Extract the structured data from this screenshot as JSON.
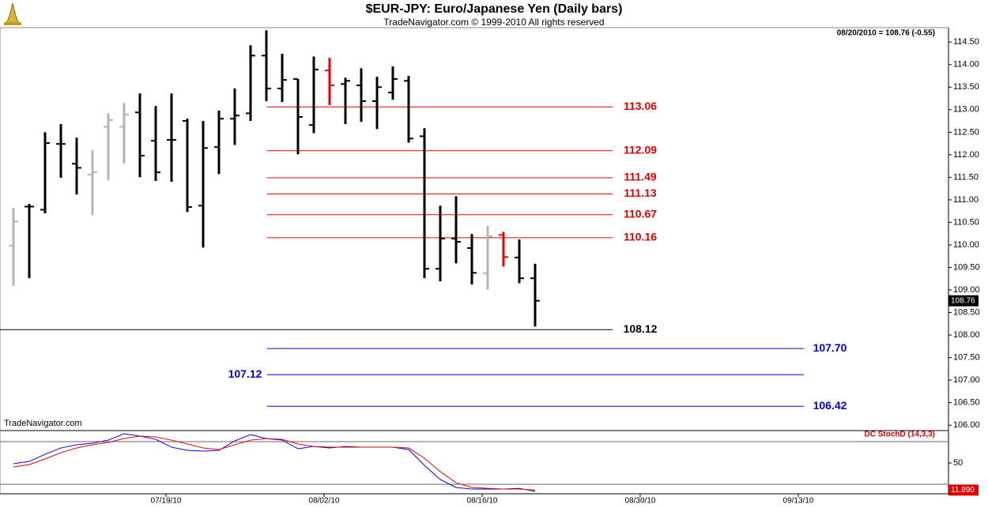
{
  "chart_data": [
    {
      "type": "ohlc",
      "title": "$EUR-JPY:  Euro/Japanese Yen  (Daily bars)",
      "subtitle": "TradeNavigator.com © 1999-2010 All rights reserved",
      "status": "08/20/2010 = 108.76 (-0.55)",
      "watermark": "TradeNavigator.com",
      "categories": [
        null,
        null,
        null,
        null,
        null,
        null,
        null,
        null,
        null,
        "07/19/10",
        null,
        null,
        null,
        null,
        null,
        null,
        null,
        null,
        null,
        "08/02/10",
        null,
        null,
        null,
        null,
        null,
        null,
        null,
        null,
        null,
        "08/16/10",
        null,
        null,
        null,
        null,
        null,
        null,
        null,
        null,
        null,
        "08/30/10",
        null,
        null,
        null,
        null,
        null,
        null,
        null,
        null,
        null,
        "09/13/10",
        null,
        null,
        null,
        null,
        null,
        null,
        null,
        null,
        null,
        null
      ],
      "open": [
        109.98,
        110.85,
        110.78,
        112.24,
        111.8,
        111.56,
        112.62,
        112.62,
        112.94,
        112.31,
        112.33,
        112.75,
        110.87,
        112.17,
        112.8,
        112.92,
        114.2,
        113.47,
        113.68,
        112.66,
        113.87,
        113.57,
        113.54,
        113.19,
        113.38,
        113.64,
        112.41,
        109.47,
        110.14,
        109.93,
        109.37,
        110.22,
        109.72,
        109.26,
        null,
        null,
        null,
        null,
        null,
        null,
        null,
        null,
        null,
        null,
        null,
        null,
        null,
        null,
        null,
        null,
        null,
        null,
        null,
        null,
        null,
        null,
        null,
        null,
        null,
        null
      ],
      "high": [
        110.82,
        110.91,
        112.5,
        112.68,
        112.38,
        112.1,
        112.92,
        113.15,
        113.36,
        113.08,
        113.36,
        112.8,
        112.75,
        112.98,
        113.47,
        114.43,
        114.76,
        114.24,
        113.68,
        114.18,
        114.15,
        113.71,
        113.92,
        113.73,
        113.96,
        113.75,
        112.59,
        110.87,
        111.08,
        110.24,
        110.42,
        110.29,
        110.12,
        109.58,
        null,
        null,
        null,
        null,
        null,
        null,
        null,
        null,
        null,
        null,
        null,
        null,
        null,
        null,
        null,
        null,
        null,
        null,
        null,
        null,
        null,
        null,
        null,
        null,
        null,
        null
      ],
      "low": [
        109.09,
        109.26,
        110.7,
        111.49,
        111.12,
        110.66,
        111.43,
        111.8,
        111.5,
        111.42,
        111.4,
        110.73,
        109.94,
        111.57,
        112.22,
        112.75,
        113.19,
        113.17,
        112.01,
        112.48,
        113.1,
        112.68,
        112.73,
        112.57,
        113.22,
        112.27,
        109.26,
        109.19,
        109.59,
        109.12,
        109.01,
        109.52,
        109.15,
        108.19,
        null,
        null,
        null,
        null,
        null,
        null,
        null,
        null,
        null,
        null,
        null,
        null,
        null,
        null,
        null,
        null,
        null,
        null,
        null,
        null,
        null,
        null,
        null,
        null,
        null,
        null
      ],
      "close": [
        110.52,
        110.85,
        112.26,
        112.24,
        111.71,
        111.61,
        112.77,
        112.89,
        111.98,
        111.61,
        112.33,
        110.84,
        112.15,
        112.8,
        112.87,
        114.2,
        113.47,
        113.66,
        112.84,
        113.89,
        113.54,
        113.64,
        113.19,
        113.5,
        113.68,
        112.36,
        109.47,
        110.14,
        110.07,
        109.38,
        110.19,
        109.73,
        109.26,
        108.76,
        null,
        null,
        null,
        null,
        null,
        null,
        null,
        null,
        null,
        null,
        null,
        null,
        null,
        null,
        null,
        null,
        null,
        null,
        null,
        null,
        null,
        null,
        null,
        null,
        null,
        null
      ],
      "bar_colors": [
        "#b4b4b4",
        "#000000",
        "#000000",
        "#000000",
        "#000000",
        "#b4b4b4",
        "#b4b4b4",
        "#b4b4b4",
        "#000000",
        "#000000",
        "#000000",
        "#000000",
        "#000000",
        "#000000",
        "#000000",
        "#000000",
        "#000000",
        "#000000",
        "#000000",
        "#000000",
        "#e60000",
        "#000000",
        "#000000",
        "#000000",
        "#000000",
        "#000000",
        "#000000",
        "#000000",
        "#000000",
        "#000000",
        "#b4b4b4",
        "#e60000",
        "#000000",
        "#000000",
        null,
        null,
        null,
        null,
        null,
        null,
        null,
        null,
        null,
        null,
        null,
        null,
        null,
        null,
        null,
        null,
        null,
        null,
        null,
        null,
        null,
        null,
        null,
        null,
        null,
        null
      ],
      "resistance": {
        "color": "#e00000",
        "values": [
          113.06,
          112.09,
          111.49,
          111.13,
          110.67,
          110.16
        ]
      },
      "support": {
        "color": "#000000",
        "values": [
          108.12
        ]
      },
      "targets": {
        "color": "#0000dd",
        "values": [
          107.7,
          107.12,
          106.42
        ],
        "value_labels": [
          "107.70",
          "107.12",
          "106.42"
        ]
      },
      "ylim": [
        105.88,
        114.82
      ],
      "yticks": [
        {
          "value": 106,
          "label": "106.00"
        },
        {
          "value": 106.5,
          "label": "106.50"
        },
        {
          "value": 107,
          "label": "107.00"
        },
        {
          "value": 107.5,
          "label": "107.50"
        },
        {
          "value": 108,
          "label": "108.00"
        },
        {
          "value": 108.5,
          "label": "108.50"
        },
        {
          "value": 109,
          "label": "109.00"
        },
        {
          "value": 109.5,
          "label": "109.50"
        },
        {
          "value": 110,
          "label": "110.00"
        },
        {
          "value": 110.5,
          "label": "110.50"
        },
        {
          "value": 111,
          "label": "111.00"
        },
        {
          "value": 111.5,
          "label": "111.50"
        },
        {
          "value": 112,
          "label": "112.00"
        },
        {
          "value": 112.5,
          "label": "112.50"
        },
        {
          "value": 113,
          "label": "113.00"
        },
        {
          "value": 113.5,
          "label": "113.50"
        },
        {
          "value": 114,
          "label": "114.00"
        },
        {
          "value": 114.5,
          "label": "114.50"
        }
      ]
    },
    {
      "type": "line",
      "label": "DC StochD (14,3,3)",
      "ylim": [
        6.7,
        95.6
      ],
      "yticks": [
        50
      ],
      "levels": [
        20,
        80
      ],
      "series": [
        {
          "color": "#0000ee",
          "values": [
            48.9,
            52.2,
            62.2,
            71.1,
            75.6,
            77.8,
            82.2,
            91.1,
            87.8,
            83.3,
            72.2,
            67.8,
            66.7,
            67.8,
            81.1,
            90,
            84.4,
            82.2,
            70,
            73.3,
            71.1,
            73.3,
            72.2,
            72.2,
            72.2,
            68.9,
            46.7,
            26.7,
            15.6,
            13.3,
            13.3,
            13.3,
            14.4,
            10,
            null,
            null,
            null,
            null,
            null,
            null,
            null,
            null,
            null,
            null,
            null,
            null,
            null,
            null,
            null,
            null,
            null,
            null,
            null,
            null,
            null,
            null,
            null,
            null,
            null,
            null
          ]
        },
        {
          "color": "#e00000",
          "values": [
            44.4,
            47.8,
            55.6,
            64.4,
            71.1,
            75.6,
            78.9,
            84.4,
            87.8,
            86.7,
            82.2,
            76.7,
            71.1,
            68.9,
            75.6,
            82.2,
            84.4,
            83.3,
            76.7,
            73.3,
            72.2,
            72.2,
            72.2,
            72.2,
            72.2,
            71.1,
            56.7,
            37.8,
            22.2,
            15.6,
            14.4,
            13.3,
            13.3,
            11.89,
            null,
            null,
            null,
            null,
            null,
            null,
            null,
            null,
            null,
            null,
            null,
            null,
            null,
            null,
            null,
            null,
            null,
            null,
            null,
            null,
            null,
            null,
            null,
            null,
            null,
            null
          ],
          "value_labels": [
            null,
            null,
            null,
            null,
            null,
            null,
            null,
            null,
            null,
            null,
            null,
            null,
            null,
            null,
            null,
            null,
            null,
            null,
            null,
            null,
            null,
            null,
            null,
            null,
            null,
            null,
            null,
            null,
            null,
            null,
            null,
            null,
            null,
            "11.890",
            null,
            null,
            null,
            null,
            null,
            null,
            null,
            null,
            null,
            null,
            null,
            null,
            null,
            null,
            null,
            null,
            null,
            null,
            null,
            null,
            null,
            null,
            null,
            null,
            null,
            null
          ]
        }
      ]
    }
  ]
}
